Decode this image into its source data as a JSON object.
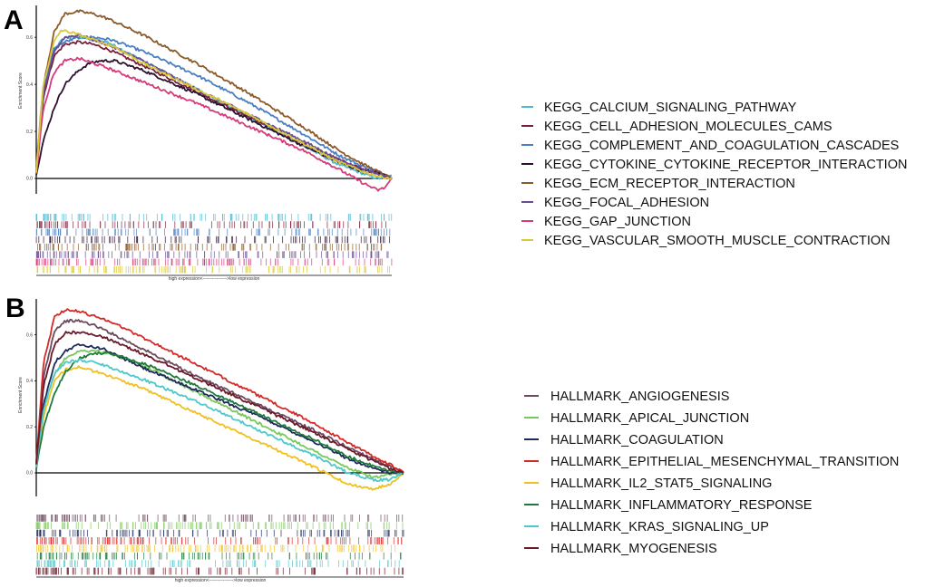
{
  "chart_data": [
    {
      "type": "line",
      "panel": "A",
      "ylabel": "Enrichment Score",
      "x_note": "high expression<---------------->low expression",
      "y_ticks": [
        "0.6",
        "0.4",
        "0.2",
        "0.0"
      ],
      "y_tick_values": [
        0.6,
        0.4,
        0.2,
        0.0
      ],
      "ylim": [
        -0.06,
        0.72
      ],
      "xlim": [
        0,
        100
      ],
      "series": [
        {
          "name": "KEGG_CALCIUM_SIGNALING_PATHWAY",
          "color": "#4fb8d0",
          "x": [
            0,
            2,
            5,
            8,
            12,
            16,
            20,
            30,
            45,
            60,
            75,
            85,
            92,
            96,
            100
          ],
          "y": [
            0.02,
            0.34,
            0.55,
            0.6,
            0.6,
            0.59,
            0.58,
            0.5,
            0.38,
            0.26,
            0.14,
            0.06,
            0.02,
            0.0,
            0.01
          ]
        },
        {
          "name": "KEGG_CELL_ADHESION_MOLECULES_CAMS",
          "color": "#7a1f3a",
          "x": [
            0,
            2,
            5,
            8,
            12,
            16,
            20,
            30,
            45,
            60,
            75,
            85,
            92,
            96,
            100
          ],
          "y": [
            0.03,
            0.35,
            0.52,
            0.57,
            0.58,
            0.57,
            0.55,
            0.48,
            0.37,
            0.26,
            0.15,
            0.08,
            0.04,
            0.02,
            0.0
          ]
        },
        {
          "name": "KEGG_COMPLEMENT_AND_COAGULATION_CASCADES",
          "color": "#4a7fc1",
          "x": [
            0,
            2,
            5,
            8,
            12,
            16,
            21,
            30,
            45,
            60,
            75,
            85,
            92,
            96,
            100
          ],
          "y": [
            0.04,
            0.38,
            0.55,
            0.58,
            0.6,
            0.6,
            0.59,
            0.54,
            0.44,
            0.32,
            0.19,
            0.1,
            0.05,
            0.03,
            0.0
          ]
        },
        {
          "name": "KEGG_CYTOKINE_CYTOKINE_RECEPTOR_INTERACTION",
          "color": "#2b1030",
          "x": [
            0,
            2,
            5,
            8,
            12,
            15,
            18,
            22,
            30,
            45,
            60,
            75,
            85,
            92,
            96,
            100
          ],
          "y": [
            0.02,
            0.16,
            0.3,
            0.4,
            0.46,
            0.49,
            0.5,
            0.5,
            0.46,
            0.36,
            0.25,
            0.14,
            0.07,
            0.03,
            0.03,
            0.0
          ]
        },
        {
          "name": "KEGG_ECM_RECEPTOR_INTERACTION",
          "color": "#8b5a2b",
          "x": [
            0,
            2,
            5,
            8,
            12,
            16,
            20,
            30,
            45,
            60,
            75,
            85,
            92,
            96,
            100
          ],
          "y": [
            0.05,
            0.4,
            0.62,
            0.7,
            0.71,
            0.7,
            0.68,
            0.61,
            0.49,
            0.36,
            0.22,
            0.12,
            0.06,
            0.03,
            0.0
          ]
        },
        {
          "name": "KEGG_FOCAL_ADHESION",
          "color": "#6a4c93",
          "x": [
            0,
            2,
            5,
            8,
            12,
            16,
            20,
            30,
            45,
            60,
            75,
            85,
            92,
            96,
            100
          ],
          "y": [
            0.03,
            0.36,
            0.54,
            0.6,
            0.61,
            0.59,
            0.57,
            0.5,
            0.38,
            0.27,
            0.16,
            0.08,
            0.04,
            0.02,
            0.0
          ]
        },
        {
          "name": "KEGG_GAP_JUNCTION",
          "color": "#d63a7a",
          "x": [
            0,
            2,
            5,
            8,
            12,
            16,
            20,
            30,
            45,
            60,
            75,
            85,
            92,
            96,
            98,
            100
          ],
          "y": [
            0.02,
            0.3,
            0.45,
            0.5,
            0.51,
            0.49,
            0.47,
            0.41,
            0.32,
            0.22,
            0.12,
            0.04,
            -0.02,
            -0.05,
            -0.04,
            0.0
          ]
        },
        {
          "name": "KEGG_VASCULAR_SMOOTH_MUSCLE_CONTRACTION",
          "color": "#d8c83a",
          "x": [
            0,
            2,
            5,
            7,
            10,
            14,
            18,
            22,
            30,
            45,
            60,
            75,
            85,
            92,
            96,
            100
          ],
          "y": [
            0.03,
            0.4,
            0.58,
            0.63,
            0.62,
            0.6,
            0.58,
            0.56,
            0.49,
            0.38,
            0.27,
            0.15,
            0.07,
            0.03,
            0.01,
            0.0
          ]
        }
      ]
    },
    {
      "type": "line",
      "panel": "B",
      "ylabel": "Enrichment Score",
      "x_note": "high expression<---------------->low expression",
      "y_ticks": [
        "0.6",
        "0.4",
        "0.2",
        "0.0"
      ],
      "y_tick_values": [
        0.6,
        0.4,
        0.2,
        0.0
      ],
      "ylim": [
        -0.1,
        0.74
      ],
      "xlim": [
        0,
        100
      ],
      "series": [
        {
          "name": "HALLMARK_ANGIOGENESIS",
          "color": "#6b4a5e",
          "x": [
            0,
            2,
            5,
            8,
            12,
            16,
            20,
            30,
            45,
            60,
            75,
            85,
            92,
            96,
            100
          ],
          "y": [
            0.04,
            0.42,
            0.62,
            0.66,
            0.66,
            0.64,
            0.61,
            0.53,
            0.41,
            0.3,
            0.19,
            0.11,
            0.06,
            0.03,
            0.0
          ]
        },
        {
          "name": "HALLMARK_APICAL_JUNCTION",
          "color": "#7bc85a",
          "x": [
            0,
            2,
            5,
            8,
            12,
            16,
            20,
            30,
            45,
            60,
            75,
            85,
            92,
            96,
            100
          ],
          "y": [
            0.03,
            0.28,
            0.43,
            0.5,
            0.53,
            0.53,
            0.52,
            0.46,
            0.34,
            0.22,
            0.1,
            0.02,
            -0.02,
            -0.01,
            0.0
          ]
        },
        {
          "name": "HALLMARK_COAGULATION",
          "color": "#1e2a5a",
          "x": [
            0,
            2,
            5,
            8,
            12,
            15,
            18,
            22,
            30,
            45,
            60,
            75,
            85,
            92,
            96,
            100
          ],
          "y": [
            0.03,
            0.3,
            0.48,
            0.53,
            0.56,
            0.55,
            0.54,
            0.51,
            0.45,
            0.35,
            0.25,
            0.14,
            0.06,
            0.02,
            0.0,
            0.0
          ]
        },
        {
          "name": "HALLMARK_EPITHELIAL_MESENCHYMAL_TRANSITION",
          "color": "#d42a2a",
          "x": [
            0,
            2,
            5,
            8,
            12,
            16,
            20,
            30,
            45,
            60,
            75,
            85,
            92,
            96,
            100
          ],
          "y": [
            0.05,
            0.48,
            0.68,
            0.71,
            0.7,
            0.68,
            0.66,
            0.58,
            0.46,
            0.34,
            0.22,
            0.13,
            0.07,
            0.04,
            0.0
          ]
        },
        {
          "name": "HALLMARK_IL2_STAT5_SIGNALING",
          "color": "#f0c020",
          "x": [
            0,
            2,
            5,
            8,
            12,
            16,
            20,
            30,
            45,
            60,
            75,
            85,
            92,
            96,
            100
          ],
          "y": [
            0.02,
            0.25,
            0.4,
            0.45,
            0.46,
            0.44,
            0.42,
            0.36,
            0.25,
            0.14,
            0.03,
            -0.05,
            -0.07,
            -0.05,
            0.0
          ]
        },
        {
          "name": "HALLMARK_INFLAMMATORY_RESPONSE",
          "color": "#1e7a3a",
          "x": [
            0,
            2,
            5,
            8,
            12,
            16,
            20,
            30,
            45,
            60,
            75,
            85,
            92,
            96,
            100
          ],
          "y": [
            0.02,
            0.2,
            0.35,
            0.44,
            0.5,
            0.52,
            0.52,
            0.47,
            0.37,
            0.26,
            0.15,
            0.07,
            0.03,
            0.01,
            0.0
          ]
        },
        {
          "name": "HALLMARK_KRAS_SIGNALING_UP",
          "color": "#4ec8cc",
          "x": [
            0,
            2,
            5,
            8,
            12,
            16,
            20,
            30,
            45,
            60,
            75,
            85,
            92,
            96,
            100
          ],
          "y": [
            0.03,
            0.28,
            0.43,
            0.48,
            0.49,
            0.48,
            0.46,
            0.4,
            0.3,
            0.19,
            0.08,
            0.0,
            -0.03,
            -0.03,
            0.0
          ]
        },
        {
          "name": "HALLMARK_MYOGENESIS",
          "color": "#6a1a2a",
          "x": [
            0,
            2,
            5,
            8,
            12,
            16,
            20,
            30,
            45,
            60,
            75,
            85,
            92,
            96,
            100
          ],
          "y": [
            0.04,
            0.38,
            0.56,
            0.61,
            0.61,
            0.6,
            0.58,
            0.51,
            0.4,
            0.29,
            0.18,
            0.1,
            0.05,
            0.02,
            0.0
          ]
        }
      ]
    }
  ],
  "panels": {
    "A": {
      "letter": "A"
    },
    "B": {
      "letter": "B"
    }
  }
}
